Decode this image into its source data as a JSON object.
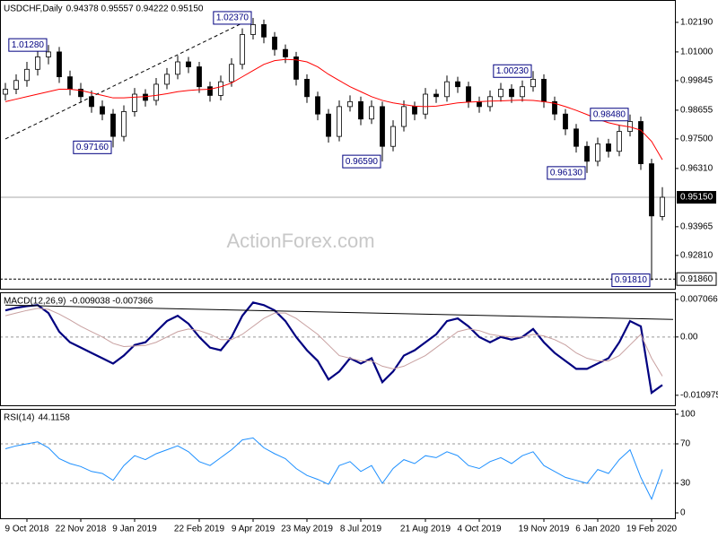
{
  "chart_data": [
    {
      "type": "candlestick",
      "title": "USDCHF,Daily",
      "header_values": "0.94378 0.95557 0.94222 0.95150",
      "watermark": "ActionForex.com",
      "color": "#000000",
      "series": {
        "open": [
          0.993,
          0.995,
          0.9985,
          1.003,
          1.008,
          1.01,
          1.0,
          0.995,
          0.992,
          0.988,
          0.985,
          0.976,
          0.986,
          0.993,
          0.9905,
          0.997,
          1.001,
          1.006,
          1.004,
          0.996,
          0.9925,
          0.998,
          1.005,
          1.017,
          1.021,
          1.016,
          1.011,
          1.008,
          0.999,
          0.992,
          0.985,
          0.976,
          0.988,
          0.99,
          0.983,
          0.988,
          0.972,
          0.98,
          0.988,
          0.985,
          0.993,
          0.992,
          0.998,
          0.996,
          0.99,
          0.988,
          0.992,
          0.995,
          0.992,
          0.996,
          0.999,
          0.99,
          0.985,
          0.979,
          0.972,
          0.966,
          0.973,
          0.97,
          0.978,
          0.982,
          0.965,
          0.94378
        ],
        "high": [
          0.9975,
          1.001,
          1.006,
          1.0105,
          1.0128,
          1.012,
          1.0025,
          0.9975,
          0.9945,
          0.9905,
          0.987,
          0.9885,
          0.9955,
          0.995,
          0.9995,
          1.0035,
          1.0085,
          1.008,
          1.006,
          0.998,
          1.0005,
          1.0075,
          1.0195,
          1.0237,
          1.023,
          1.018,
          1.013,
          1.01,
          1.001,
          0.994,
          0.987,
          0.9905,
          0.9925,
          0.992,
          0.9905,
          0.99,
          0.9825,
          0.9905,
          0.99,
          0.9955,
          0.995,
          1.0005,
          1.0,
          0.998,
          0.992,
          0.9945,
          0.9975,
          0.997,
          0.9985,
          1.0023,
          1.001,
          0.992,
          0.987,
          0.981,
          0.974,
          0.9755,
          0.975,
          0.9805,
          0.9848,
          0.984,
          0.967,
          0.95557
        ],
        "low": [
          0.9905,
          0.993,
          0.996,
          1.0005,
          1.005,
          0.9975,
          0.9925,
          0.9895,
          0.9855,
          0.9825,
          0.9716,
          0.974,
          0.984,
          0.988,
          0.9885,
          0.995,
          0.999,
          1.0015,
          0.9935,
          0.99,
          0.9905,
          0.996,
          1.003,
          1.015,
          1.0135,
          1.0085,
          1.0055,
          0.9965,
          0.9895,
          0.9825,
          0.9735,
          0.974,
          0.986,
          0.9805,
          0.981,
          0.9659,
          0.97,
          0.978,
          0.9825,
          0.983,
          0.9895,
          0.99,
          0.9935,
          0.9875,
          0.9855,
          0.986,
          0.99,
          0.9895,
          0.99,
          0.994,
          0.9875,
          0.9825,
          0.9765,
          0.9695,
          0.9613,
          0.964,
          0.9675,
          0.968,
          0.976,
          0.9625,
          0.9181,
          0.94222
        ],
        "close": [
          0.995,
          0.9985,
          1.003,
          1.008,
          1.01,
          1.0,
          0.995,
          0.992,
          0.988,
          0.985,
          0.976,
          0.986,
          0.993,
          0.9905,
          0.997,
          1.001,
          1.006,
          1.004,
          0.996,
          0.9925,
          0.998,
          1.005,
          1.017,
          1.021,
          1.016,
          1.011,
          1.008,
          0.999,
          0.992,
          0.985,
          0.976,
          0.988,
          0.99,
          0.983,
          0.988,
          0.972,
          0.98,
          0.988,
          0.985,
          0.993,
          0.992,
          0.998,
          0.996,
          0.99,
          0.988,
          0.992,
          0.995,
          0.992,
          0.996,
          0.999,
          0.99,
          0.985,
          0.979,
          0.972,
          0.966,
          0.973,
          0.97,
          0.978,
          0.982,
          0.965,
          0.944,
          0.9515
        ]
      },
      "ma": {
        "color": "#ff0000",
        "values": [
          0.99,
          0.991,
          0.992,
          0.993,
          0.994,
          0.995,
          0.995,
          0.9945,
          0.9935,
          0.9925,
          0.9915,
          0.9915,
          0.9918,
          0.992,
          0.9925,
          0.9932,
          0.994,
          0.9945,
          0.9948,
          0.995,
          0.996,
          0.9975,
          1.0,
          1.0025,
          1.005,
          1.0065,
          1.007,
          1.0068,
          1.006,
          1.004,
          1.001,
          0.9985,
          0.996,
          0.994,
          0.992,
          0.9905,
          0.9895,
          0.9888,
          0.9882,
          0.988,
          0.9882,
          0.9888,
          0.9895,
          0.9898,
          0.99,
          0.9902,
          0.9903,
          0.9905,
          0.9906,
          0.9905,
          0.99,
          0.9893,
          0.988,
          0.9865,
          0.9848,
          0.983,
          0.9815,
          0.9805,
          0.9798,
          0.9785,
          0.974,
          0.9666
        ]
      },
      "ylim": [
        0.9147,
        1.0309
      ],
      "yticks": [
        {
          "value": 1.0219,
          "label": "1.02190"
        },
        {
          "value": 1.01,
          "label": "1.01000"
        },
        {
          "value": 0.99845,
          "label": "0.99845"
        },
        {
          "value": 0.98655,
          "label": "0.98655"
        },
        {
          "value": 0.975,
          "label": "0.97500"
        },
        {
          "value": 0.9631,
          "label": "0.96310"
        },
        {
          "value": 0.93965,
          "label": "0.93965"
        },
        {
          "value": 0.9281,
          "label": "0.92810"
        }
      ],
      "price_line": {
        "value": 0.9515,
        "label": "0.95150"
      },
      "support_line": {
        "value": 0.9186,
        "label": "0.91860"
      },
      "trendline": {
        "from": [
          0,
          0.975
        ],
        "to": [
          23,
          1.0237
        ]
      },
      "annotations": [
        {
          "label": "1.01280",
          "value": 1.0128,
          "bar": 4
        },
        {
          "label": "0.97160",
          "value": 0.9716,
          "bar": 10
        },
        {
          "label": "1.02370",
          "value": 1.0237,
          "bar": 23
        },
        {
          "label": "0.96590",
          "value": 0.9659,
          "bar": 35
        },
        {
          "label": "1.00230",
          "value": 1.0023,
          "bar": 49
        },
        {
          "label": "0.96130",
          "value": 0.9613,
          "bar": 54
        },
        {
          "label": "0.98480",
          "value": 0.9848,
          "bar": 58
        },
        {
          "label": "0.91810",
          "value": 0.9181,
          "bar": 60
        }
      ]
    },
    {
      "type": "line",
      "title": "MACD(12,26,9)",
      "header_values": "-0.009038 -0.007366",
      "series": [
        {
          "color": "#000080",
          "width": 2.2,
          "values": [
            0.005,
            0.0055,
            0.0058,
            0.006,
            0.0045,
            0.001,
            -0.001,
            -0.002,
            -0.003,
            -0.004,
            -0.005,
            -0.0035,
            -0.0015,
            -0.001,
            0.001,
            0.003,
            0.004,
            0.0025,
            0.0,
            -0.002,
            -0.0025,
            0.0,
            0.004,
            0.0065,
            0.006,
            0.005,
            0.003,
            0.0,
            -0.0025,
            -0.0045,
            -0.008,
            -0.0065,
            -0.004,
            -0.005,
            -0.004,
            -0.0085,
            -0.0065,
            -0.0035,
            -0.0025,
            -0.001,
            0.0005,
            0.003,
            0.0035,
            0.002,
            0.0,
            -0.001,
            0.0,
            -0.0005,
            0.0,
            0.0015,
            -0.001,
            -0.003,
            -0.0045,
            -0.006,
            -0.006,
            -0.005,
            -0.004,
            -0.001,
            0.003,
            0.002,
            -0.0105,
            -0.009038
          ]
        },
        {
          "color": "#c8a0a0",
          "width": 1,
          "values": [
            0.004,
            0.0045,
            0.005,
            0.0054,
            0.0052,
            0.0043,
            0.0032,
            0.002,
            0.001,
            0.0,
            -0.0012,
            -0.0018,
            -0.0017,
            -0.0016,
            -0.001,
            0.0,
            0.001,
            0.0015,
            0.0012,
            0.0005,
            -0.0005,
            -0.0005,
            0.0005,
            0.002,
            0.0035,
            0.0045,
            0.0045,
            0.0035,
            0.002,
            0.0005,
            -0.0015,
            -0.0035,
            -0.004,
            -0.0045,
            -0.0045,
            -0.0055,
            -0.006,
            -0.0055,
            -0.0045,
            -0.0035,
            -0.002,
            -0.0005,
            0.001,
            0.0015,
            0.0012,
            0.0005,
            0.0002,
            0.0,
            0.0,
            0.0005,
            0.0002,
            -0.0005,
            -0.0015,
            -0.003,
            -0.004,
            -0.0045,
            -0.0045,
            -0.0035,
            -0.0015,
            0.0005,
            -0.004,
            -0.007366
          ]
        }
      ],
      "ylim": [
        -0.01286,
        0.00841
      ],
      "yticks": [
        0.007066,
        {
          "value": 0,
          "label": "0.00"
        },
        -0.010975
      ],
      "levels": [
        0
      ],
      "trendline": {
        "from": [
          0,
          0.006
        ],
        "to": [
          62,
          0.0033
        ]
      }
    },
    {
      "type": "line",
      "title": "RSI(14)",
      "header_values": "44.1158",
      "series": [
        {
          "color": "#1e90ff",
          "width": 1,
          "values": [
            65,
            68,
            70,
            72,
            66,
            55,
            50,
            47,
            42,
            40,
            33,
            48,
            58,
            54,
            60,
            64,
            68,
            62,
            52,
            48,
            56,
            64,
            74,
            76,
            66,
            60,
            55,
            45,
            38,
            34,
            29,
            48,
            52,
            42,
            48,
            30,
            45,
            54,
            50,
            58,
            56,
            62,
            58,
            48,
            45,
            52,
            56,
            50,
            58,
            62,
            48,
            42,
            36,
            33,
            30,
            44,
            40,
            54,
            64,
            36,
            14,
            44.1158
          ]
        }
      ],
      "ylim": [
        -5.45,
        105.45
      ],
      "yticks": [
        100,
        70,
        30,
        0
      ],
      "levels": [
        70,
        30
      ],
      "categories": [
        null,
        null,
        "9 Oct 2018",
        null,
        null,
        null,
        null,
        "22 Nov 2018",
        null,
        null,
        null,
        null,
        "9 Jan 2019",
        null,
        null,
        null,
        null,
        null,
        "22 Feb 2019",
        null,
        null,
        null,
        null,
        "9 Apr 2019",
        null,
        null,
        null,
        null,
        "23 May 2019",
        null,
        null,
        null,
        null,
        "8 Jul 2019",
        null,
        null,
        null,
        null,
        null,
        "21 Aug 2019",
        null,
        null,
        null,
        null,
        "4 Oct 2019",
        null,
        null,
        null,
        null,
        null,
        "19 Nov 2019",
        null,
        null,
        null,
        null,
        "6 Jan 2020",
        null,
        null,
        null,
        null,
        "19 Feb 2020",
        null
      ]
    }
  ]
}
